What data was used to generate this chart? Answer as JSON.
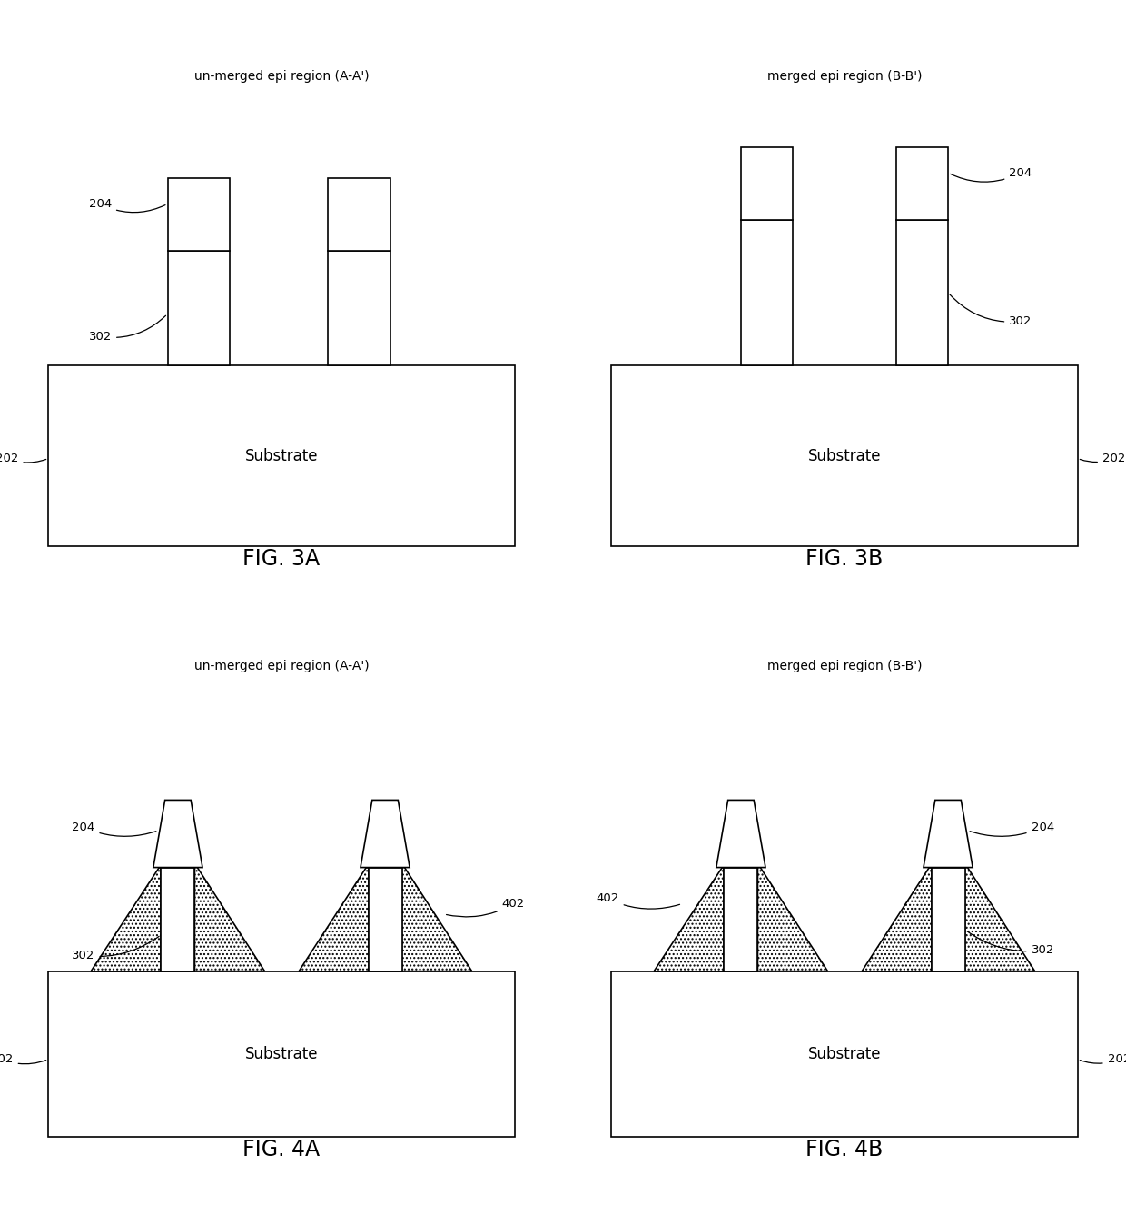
{
  "fig_labels": [
    "FIG. 3A",
    "FIG. 3B",
    "FIG. 4A",
    "FIG. 4B"
  ],
  "top_labels": [
    "un-merged epi region (A-A')",
    "merged epi region (B-B')",
    "un-merged epi region (A-A')",
    "merged epi region (B-B')"
  ],
  "background": "#ffffff",
  "substrate_label": "Substrate",
  "lw": 1.2
}
